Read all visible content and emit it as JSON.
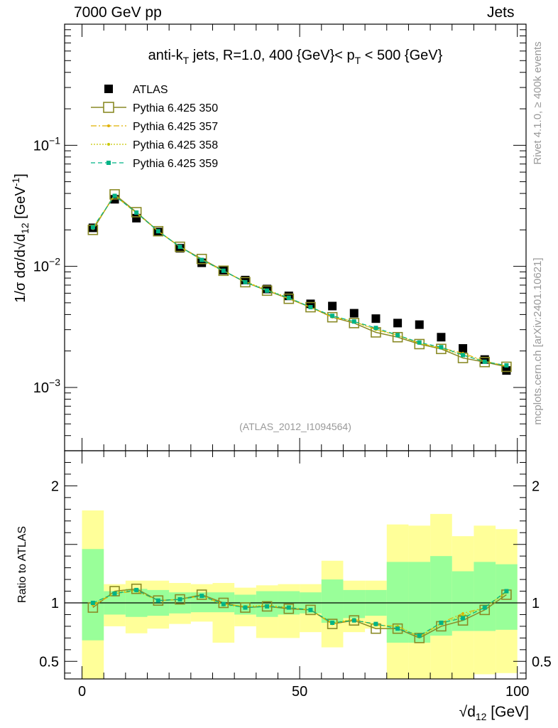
{
  "header": {
    "left": "7000 GeV pp",
    "right": "Jets"
  },
  "side": {
    "rivet": "Rivet 4.1.0, ≥ 400k events",
    "mcplots": "mcplots.cern.ch [arXiv:2401.10621]"
  },
  "chart_data": [
    {
      "type": "scatter",
      "panel": "main",
      "title": "anti-kT jets, R=1.0, 400 {GeV}< pT < 500 {GeV}",
      "ylabel": "1/σ dσ/d√d12 [GeV⁻¹]",
      "xlim": [
        -4,
        102
      ],
      "ylim": [
        0.0003,
        1
      ],
      "yscale": "log",
      "ytick_labels": [
        {
          "v": 0.1,
          "base": "10",
          "exp": "−1"
        },
        {
          "v": 0.01,
          "base": "10",
          "exp": "−2"
        },
        {
          "v": 0.001,
          "base": "10",
          "exp": "−3"
        }
      ],
      "analysis_label": "(ATLAS_2012_I1094564)",
      "x": [
        2.5,
        7.5,
        12.5,
        17.5,
        22.5,
        27.5,
        32.5,
        37.5,
        42.5,
        47.5,
        52.5,
        57.5,
        62.5,
        67.5,
        72.5,
        77.5,
        82.5,
        87.5,
        92.5,
        97.5
      ],
      "series": [
        {
          "name": "ATLAS",
          "style": "data",
          "values": [
            0.0208,
            0.0358,
            0.025,
            0.0192,
            0.0141,
            0.0107,
            0.0093,
            0.0077,
            0.0065,
            0.0057,
            0.0049,
            0.0047,
            0.0041,
            0.0037,
            0.0034,
            0.0033,
            0.0026,
            0.0021,
            0.0017,
            0.00138
          ]
        },
        {
          "name": "Pythia 6.425 350",
          "style": "open-square",
          "color": "#8a8a26",
          "values": [
            0.02,
            0.0393,
            0.028,
            0.0195,
            0.0145,
            0.0115,
            0.0092,
            0.0074,
            0.0063,
            0.0054,
            0.0046,
            0.0038,
            0.0034,
            0.00285,
            0.0026,
            0.00228,
            0.00208,
            0.00175,
            0.00162,
            0.00148
          ]
        },
        {
          "name": "Pythia 6.425 357",
          "style": "dashdot",
          "color": "#e0b000",
          "values": [
            0.0205,
            0.0385,
            0.0275,
            0.0195,
            0.0145,
            0.0113,
            0.0092,
            0.0074,
            0.0063,
            0.0054,
            0.0046,
            0.0038,
            0.0035,
            0.003,
            0.0027,
            0.00232,
            0.00212,
            0.00192,
            0.00165,
            0.0015
          ]
        },
        {
          "name": "Pythia 6.425 358",
          "style": "dotted",
          "color": "#c8c800",
          "values": [
            0.0208,
            0.0385,
            0.0276,
            0.0196,
            0.0145,
            0.0113,
            0.0091,
            0.0075,
            0.0064,
            0.0055,
            0.0046,
            0.0039,
            0.0035,
            0.003,
            0.0027,
            0.0023,
            0.0021,
            0.00185,
            0.00165,
            0.0015
          ]
        },
        {
          "name": "Pythia 6.425 359",
          "style": "dashed",
          "color": "#00b386",
          "values": [
            0.021,
            0.0382,
            0.0278,
            0.0195,
            0.0145,
            0.0113,
            0.0092,
            0.0074,
            0.0063,
            0.0055,
            0.0046,
            0.0039,
            0.0035,
            0.0031,
            0.0027,
            0.00235,
            0.00215,
            0.00185,
            0.00163,
            0.00152
          ]
        }
      ]
    },
    {
      "type": "line",
      "panel": "ratio",
      "ylabel": "Ratio to ATLAS",
      "xlabel": "√d12 [GeV]",
      "xlim": [
        -4,
        102
      ],
      "ylim": [
        0.35,
        2.3
      ],
      "ytick_labels": [
        {
          "v": 0.5,
          "label": "0.5"
        },
        {
          "v": 1,
          "label": "1"
        },
        {
          "v": 2,
          "label": "2"
        }
      ],
      "xtick_labels": [
        {
          "v": 0,
          "label": "0"
        },
        {
          "v": 50,
          "label": "50"
        },
        {
          "v": 100,
          "label": "100"
        }
      ],
      "band_edges": [
        0,
        5,
        10,
        15,
        20,
        25,
        30,
        35,
        40,
        45,
        50,
        55,
        60,
        65,
        70,
        75,
        80,
        85,
        90,
        95,
        100
      ],
      "yellow_band": {
        "lo": [
          0.35,
          0.8,
          0.74,
          0.78,
          0.82,
          0.84,
          0.66,
          0.8,
          0.7,
          0.7,
          0.75,
          0.62,
          0.75,
          0.78,
          0.35,
          0.35,
          0.35,
          0.35,
          0.39,
          0.4
        ],
        "hi": [
          1.79,
          1.16,
          1.19,
          1.19,
          1.17,
          1.16,
          1.17,
          1.13,
          1.15,
          1.16,
          1.16,
          1.36,
          1.19,
          1.19,
          1.67,
          1.66,
          1.76,
          1.57,
          1.66,
          1.63
        ]
      },
      "green_band": {
        "lo": [
          0.68,
          0.9,
          0.88,
          0.89,
          0.91,
          0.92,
          0.92,
          0.9,
          0.88,
          0.9,
          0.91,
          0.83,
          0.87,
          0.89,
          0.66,
          0.66,
          0.72,
          0.76,
          0.76,
          0.77
        ],
        "hi": [
          1.46,
          1.1,
          1.12,
          1.11,
          1.09,
          1.09,
          1.09,
          1.07,
          1.1,
          1.1,
          1.09,
          1.2,
          1.11,
          1.11,
          1.35,
          1.35,
          1.4,
          1.27,
          1.35,
          1.33
        ]
      },
      "x": [
        2.5,
        7.5,
        12.5,
        17.5,
        22.5,
        27.5,
        32.5,
        37.5,
        42.5,
        47.5,
        52.5,
        57.5,
        62.5,
        67.5,
        72.5,
        77.5,
        82.5,
        87.5,
        92.5,
        97.5
      ],
      "series": [
        {
          "name": "Pythia 6.425 350",
          "style": "open-square",
          "color": "#8a8a26",
          "values": [
            0.96,
            1.1,
            1.12,
            1.02,
            1.03,
            1.07,
            1.0,
            0.96,
            0.97,
            0.95,
            0.94,
            0.82,
            0.85,
            0.78,
            0.78,
            0.7,
            0.8,
            0.85,
            0.94,
            1.07
          ]
        },
        {
          "name": "Pythia 6.425 357",
          "style": "dashdot",
          "color": "#e0b000",
          "values": [
            0.98,
            1.08,
            1.1,
            1.02,
            1.03,
            1.06,
            0.99,
            0.97,
            0.97,
            0.96,
            0.94,
            0.82,
            0.86,
            0.81,
            0.8,
            0.71,
            0.83,
            0.91,
            0.96,
            1.09
          ]
        },
        {
          "name": "Pythia 6.425 358",
          "style": "dotted",
          "color": "#c8c800",
          "values": [
            0.99,
            1.09,
            1.11,
            1.02,
            1.03,
            1.06,
            0.98,
            0.97,
            0.98,
            0.96,
            0.94,
            0.83,
            0.86,
            0.81,
            0.8,
            0.71,
            0.82,
            0.89,
            0.96,
            1.09
          ]
        },
        {
          "name": "Pythia 6.425 359",
          "style": "dashed",
          "color": "#00b386",
          "values": [
            1.0,
            1.08,
            1.11,
            1.02,
            1.03,
            1.06,
            0.99,
            0.96,
            0.97,
            0.96,
            0.94,
            0.83,
            0.85,
            0.82,
            0.78,
            0.72,
            0.83,
            0.87,
            0.96,
            1.1
          ]
        }
      ]
    }
  ]
}
